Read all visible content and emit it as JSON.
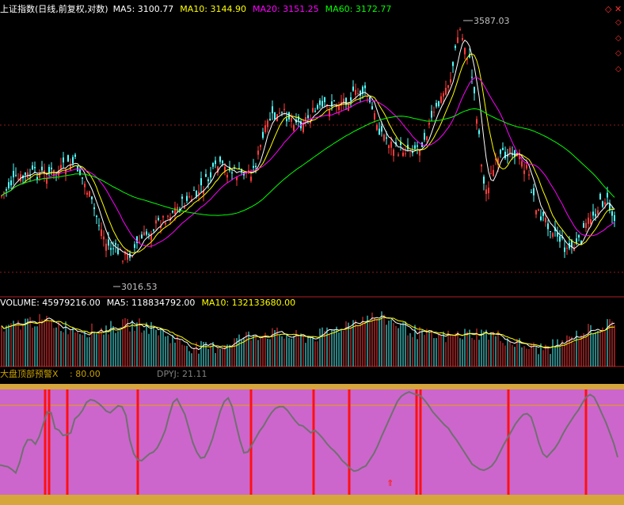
{
  "chart_data": [
    {
      "panel": "price",
      "type": "candlestick",
      "title": "上证指数(日线,前复权,对数)",
      "indicators": [
        {
          "label": "MA5",
          "value": "3100.77",
          "color": "#ffffff"
        },
        {
          "label": "MA10",
          "value": "3144.90",
          "color": "#ffff00"
        },
        {
          "label": "MA20",
          "value": "3151.25",
          "color": "#ff00ff"
        },
        {
          "label": "MA60",
          "value": "3172.77",
          "color": "#00ff00"
        }
      ],
      "high_label": "3587.03",
      "low_label": "3016.53",
      "scale": "log"
    },
    {
      "panel": "volume",
      "type": "bar",
      "title": "VOLUME",
      "indicators": [
        {
          "label": "VOLUME",
          "value": "45979216.00",
          "color": "#ffffff"
        },
        {
          "label": "MA5",
          "value": "118834792.00",
          "color": "#ffffff"
        },
        {
          "label": "MA10",
          "value": "132133680.00",
          "color": "#ffff00"
        }
      ]
    },
    {
      "panel": "warning",
      "type": "line",
      "title": "大盘顶部预警X",
      "indicators": [
        {
          "label": "",
          "value": "80.00",
          "color": "#c8a000"
        },
        {
          "label": "DPYJ",
          "value": "21.11",
          "color": "#808080"
        }
      ],
      "signal_positions": [
        57,
        62,
        85,
        174,
        317,
        396,
        441,
        526,
        531,
        642,
        740
      ],
      "line_values": [
        15,
        14,
        13,
        10,
        6,
        18,
        35,
        44,
        44,
        39,
        48,
        62,
        76,
        75,
        57,
        55,
        49,
        50,
        52,
        68,
        72,
        78,
        87,
        90,
        89,
        86,
        82,
        77,
        75,
        79,
        83,
        82,
        72,
        44,
        28,
        21,
        20,
        24,
        28,
        30,
        35,
        44,
        55,
        72,
        87,
        91,
        82,
        73,
        57,
        41,
        30,
        23,
        24,
        33,
        45,
        61,
        77,
        88,
        92,
        82,
        62,
        43,
        29,
        30,
        38,
        46,
        54,
        60,
        68,
        75,
        80,
        82,
        82,
        78,
        72,
        66,
        61,
        60,
        56,
        52,
        55,
        51,
        46,
        40,
        35,
        31,
        26,
        20,
        16,
        11,
        8,
        9,
        12,
        14,
        21,
        28,
        37,
        48,
        58,
        68,
        78,
        88,
        94,
        97,
        99,
        97,
        96,
        94,
        89,
        83,
        76,
        71,
        66,
        61,
        57,
        50,
        44,
        37,
        30,
        23,
        16,
        13,
        10,
        9,
        11,
        14,
        20,
        29,
        38,
        46,
        54,
        62,
        68,
        73,
        74,
        70,
        56,
        40,
        28,
        24,
        29,
        34,
        41,
        50,
        58,
        65,
        72,
        78,
        86,
        93,
        96,
        93,
        84,
        74,
        64,
        52,
        40,
        24
      ]
    }
  ]
}
